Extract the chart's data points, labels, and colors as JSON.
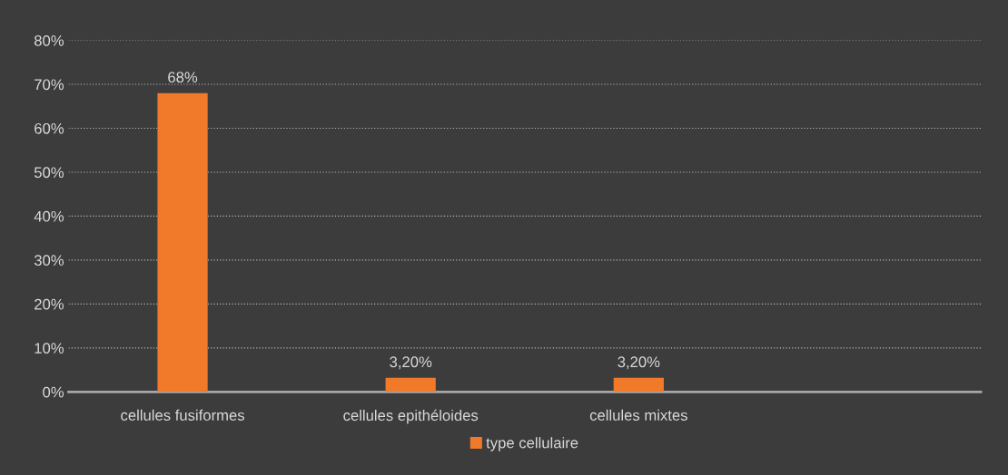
{
  "chart_data": {
    "type": "bar",
    "categories": [
      "cellules fusiformes",
      "cellules epithéloides",
      "cellules mixtes",
      null
    ],
    "series": [
      {
        "name": "type cellulaire",
        "color": "#f07a2a",
        "values": [
          68,
          3.2,
          3.2,
          null
        ],
        "value_labels": [
          "68%",
          "3,20%",
          "3,20%",
          null
        ]
      }
    ],
    "ylim": [
      0,
      80
    ],
    "yticks": [
      {
        "value": 0,
        "label": "0%"
      },
      {
        "value": 10,
        "label": "10%"
      },
      {
        "value": 20,
        "label": "20%"
      },
      {
        "value": 30,
        "label": "30%"
      },
      {
        "value": 40,
        "label": "40%"
      },
      {
        "value": 50,
        "label": "50%"
      },
      {
        "value": 60,
        "label": "60%"
      },
      {
        "value": 70,
        "label": "70%"
      },
      {
        "value": 80,
        "label": "80%"
      }
    ],
    "grid": "y",
    "legend": "bottom"
  }
}
